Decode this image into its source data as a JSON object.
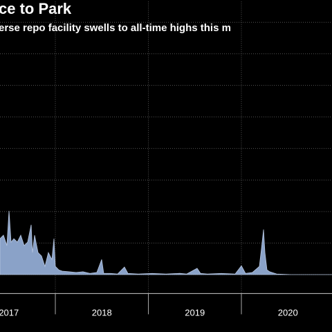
{
  "chart_data": {
    "type": "area",
    "title": "ce to Park",
    "subtitle": "erse repo facility swells to all-time highs this m",
    "x": [
      2017.405,
      2017.442,
      2017.479,
      2017.502,
      2017.524,
      2017.554,
      2017.591,
      2017.628,
      2017.665,
      2017.702,
      2017.74,
      2017.754,
      2017.777,
      2017.814,
      2017.851,
      2017.888,
      2017.925,
      2017.963,
      2017.985,
      2018.0,
      2018.037,
      2018.074,
      2018.148,
      2018.223,
      2018.297,
      2018.372,
      2018.446,
      2018.498,
      2018.52,
      2018.595,
      2018.669,
      2018.743,
      2018.78,
      2018.892,
      2019.041,
      2019.189,
      2019.338,
      2019.412,
      2019.524,
      2019.561,
      2019.635,
      2019.784,
      2019.933,
      2020.0,
      2020.044,
      2020.119,
      2020.193,
      2020.215,
      2020.238,
      2020.253,
      2020.275,
      2020.305,
      2020.379,
      2020.528,
      2020.751,
      2020.974
    ],
    "values": [
      114,
      125,
      92,
      202,
      103,
      114,
      103,
      125,
      92,
      103,
      158,
      70,
      125,
      70,
      59,
      26,
      70,
      48,
      114,
      26,
      15,
      11,
      9,
      7,
      9,
      4,
      7,
      48,
      4,
      4,
      2,
      24,
      4,
      2,
      4,
      2,
      4,
      2,
      20,
      4,
      2,
      4,
      2,
      28,
      4,
      7,
      26,
      81,
      143,
      70,
      15,
      9,
      2,
      0,
      0,
      0
    ],
    "color": "#8aa2c8",
    "xlim": [
      2017.405,
      2020.974
    ],
    "ylim": [
      -60,
      800
    ],
    "yticks": [
      0,
      100,
      200,
      300,
      400,
      500,
      600,
      700,
      800
    ],
    "xgrid": [
      2018,
      2019,
      2020
    ],
    "xticks": [
      {
        "value": 2017.5,
        "label": "2017"
      },
      {
        "value": 2018.5,
        "label": "2018"
      },
      {
        "value": 2019.5,
        "label": "2019"
      },
      {
        "value": 2020.5,
        "label": "2020"
      }
    ],
    "grid": true
  }
}
